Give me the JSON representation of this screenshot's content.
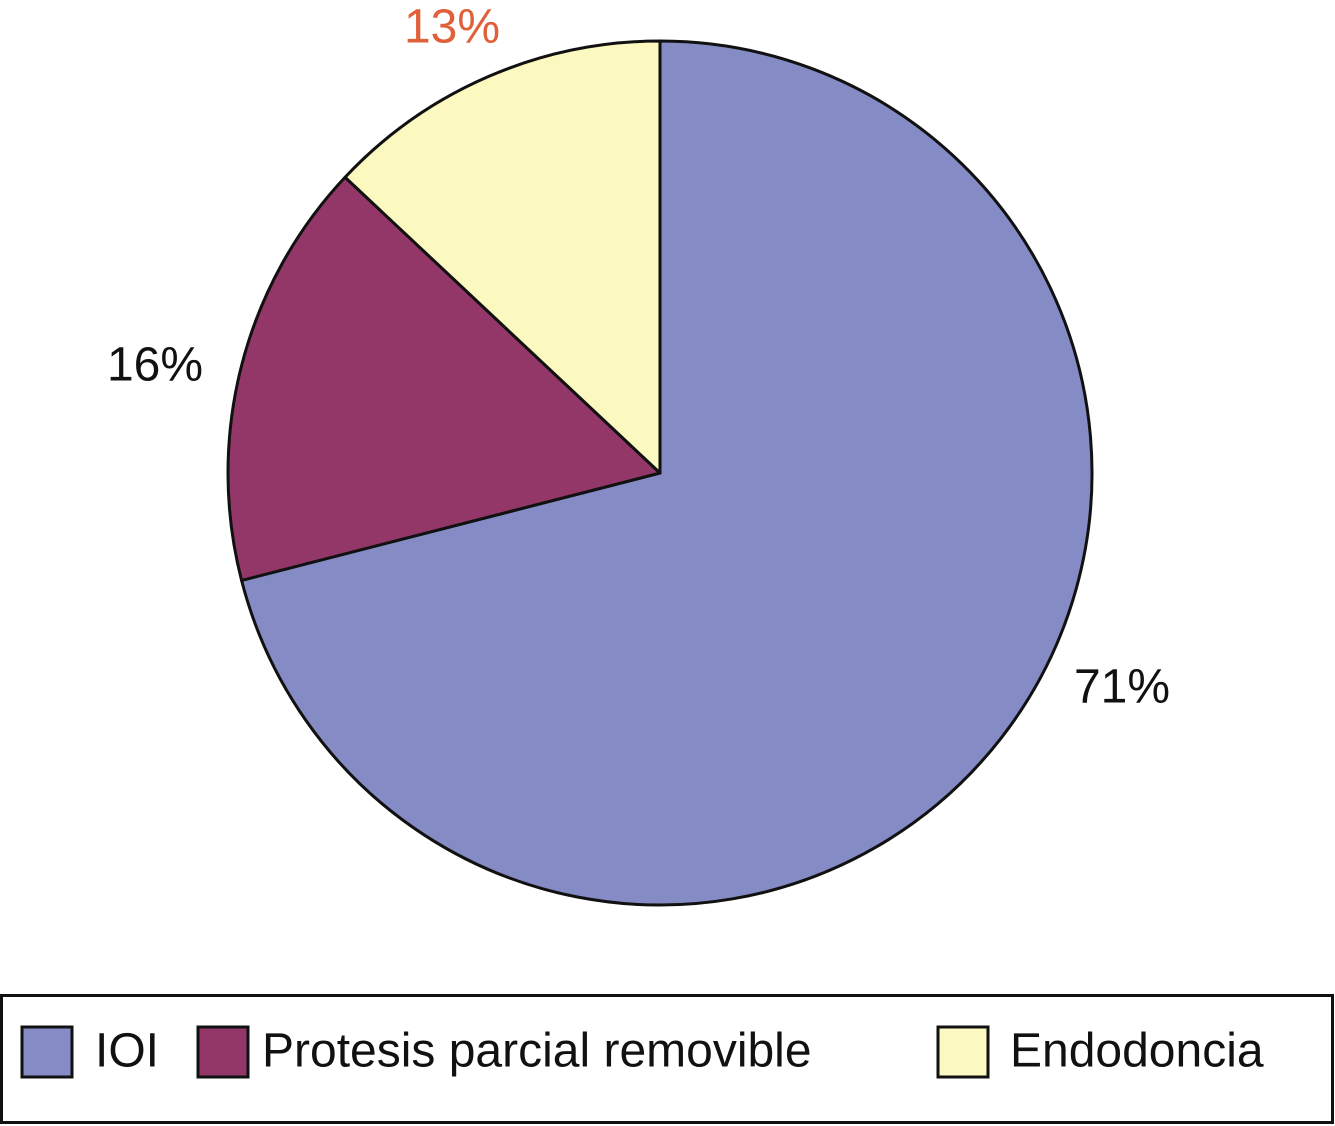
{
  "chart_data": {
    "type": "pie",
    "categories": [
      "IOI",
      "Protesis parcial removible",
      "Endodoncia"
    ],
    "values": [
      71,
      16,
      13
    ],
    "value_labels": [
      "71%",
      "16%",
      "13%"
    ],
    "colors": [
      "#858bc4",
      "#933768",
      "#fbf8c0"
    ],
    "label_colors": [
      "#111111",
      "#111111",
      "#e0603a"
    ],
    "legend": "bottom"
  }
}
